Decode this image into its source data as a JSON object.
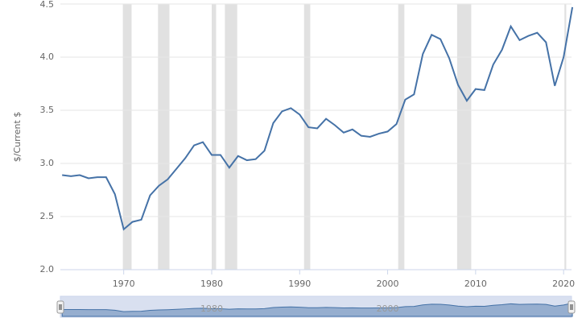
{
  "chart_data": {
    "type": "line",
    "y_label": "$/Current $",
    "x": [
      1963,
      1964,
      1965,
      1966,
      1967,
      1968,
      1969,
      1970,
      1971,
      1972,
      1973,
      1974,
      1975,
      1976,
      1977,
      1978,
      1979,
      1980,
      1981,
      1982,
      1983,
      1984,
      1985,
      1986,
      1987,
      1988,
      1989,
      1990,
      1991,
      1992,
      1993,
      1994,
      1995,
      1996,
      1997,
      1998,
      1999,
      2000,
      2001,
      2002,
      2003,
      2004,
      2005,
      2006,
      2007,
      2008,
      2009,
      2010,
      2011,
      2012,
      2013,
      2014,
      2015,
      2016,
      2017,
      2018,
      2019,
      2020,
      2021
    ],
    "series": [
      {
        "color": "#4572a7",
        "values": [
          2.89,
          2.88,
          2.89,
          2.86,
          2.87,
          2.87,
          2.71,
          2.38,
          2.45,
          2.47,
          2.7,
          2.79,
          2.85,
          2.95,
          3.05,
          3.17,
          3.2,
          3.08,
          3.08,
          2.96,
          3.07,
          3.03,
          3.04,
          3.12,
          3.38,
          3.49,
          3.52,
          3.46,
          3.34,
          3.33,
          3.42,
          3.36,
          3.29,
          3.32,
          3.26,
          3.25,
          3.28,
          3.3,
          3.37,
          3.6,
          3.65,
          4.03,
          4.21,
          4.17,
          3.99,
          3.74,
          3.59,
          3.7,
          3.69,
          3.93,
          4.07,
          4.29,
          4.16,
          4.2,
          4.23,
          4.14,
          3.73,
          4.0,
          4.47
        ]
      }
    ],
    "shaded_periods": [
      [
        1969.9,
        1970.9
      ],
      [
        1973.9,
        1975.2
      ],
      [
        1980.0,
        1980.5
      ],
      [
        1981.5,
        1982.9
      ],
      [
        1990.5,
        1991.2
      ],
      [
        2001.2,
        2001.9
      ],
      [
        2007.9,
        2009.5
      ],
      [
        2020.1,
        2020.3
      ]
    ],
    "xlim": [
      1962.8,
      2020.9
    ],
    "xticks": [
      1970,
      1980,
      1990,
      2000,
      2010,
      2020
    ],
    "ylim": [
      2.0,
      4.5
    ],
    "yticks": [
      {
        "value": 2,
        "label": "2.0"
      },
      2.5,
      {
        "value": 3,
        "label": "3.0"
      },
      3.5,
      {
        "value": 4,
        "label": "4.0"
      },
      4.5
    ],
    "grid": true,
    "navigator_xticks": [
      1980,
      2000
    ]
  }
}
